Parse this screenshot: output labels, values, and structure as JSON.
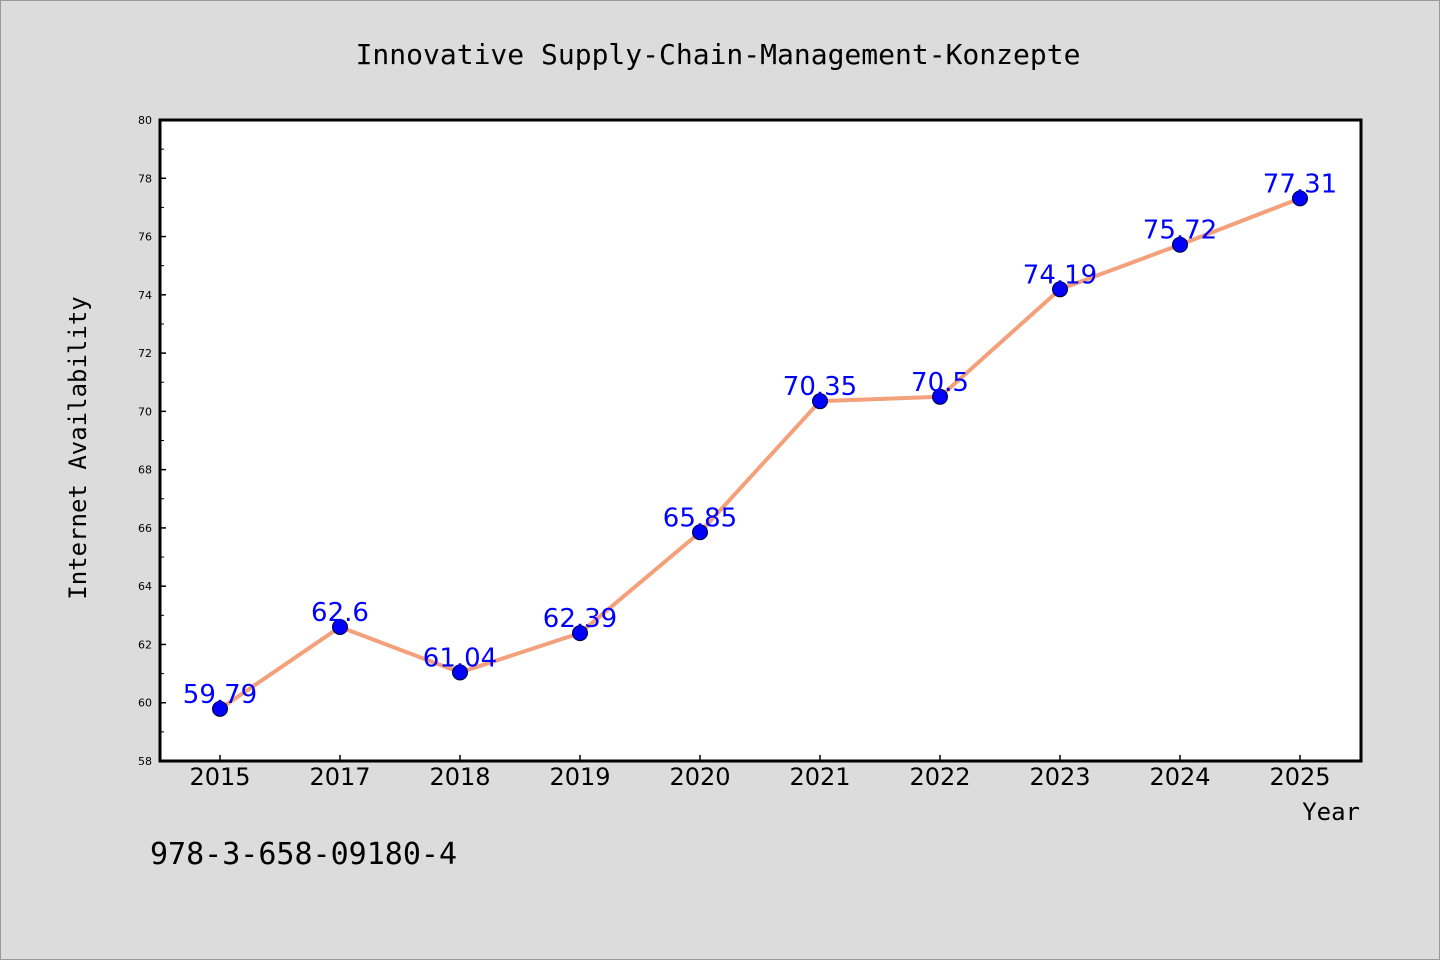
{
  "chart_data": {
    "type": "line",
    "title": "Innovative Supply-Chain-Management-Konzepte",
    "xlabel": "Year",
    "ylabel": "Internet Availability",
    "categories": [
      "2015",
      "2017",
      "2018",
      "2019",
      "2020",
      "2021",
      "2022",
      "2023",
      "2024",
      "2025"
    ],
    "series": [
      {
        "values": [
          59.79,
          62.6,
          61.04,
          62.39,
          65.85,
          70.35,
          70.5,
          74.19,
          75.72,
          77.31
        ],
        "labels": [
          "59.79",
          "62.6",
          "61.04",
          "62.39",
          "65.85",
          "70.35",
          "70.5",
          "74.19",
          "75.72",
          "77.31"
        ],
        "line_color": "#f4a07a",
        "marker_color": "#0000ff",
        "label_color": "#0000ff"
      }
    ],
    "ylim": [
      58,
      80
    ],
    "yticks": [
      "58",
      "60",
      "62",
      "64",
      "66",
      "68",
      "70",
      "72",
      "74",
      "76",
      "78",
      "80"
    ],
    "grid": false,
    "legend": "none",
    "footnote": "978-3-658-09180-4"
  }
}
